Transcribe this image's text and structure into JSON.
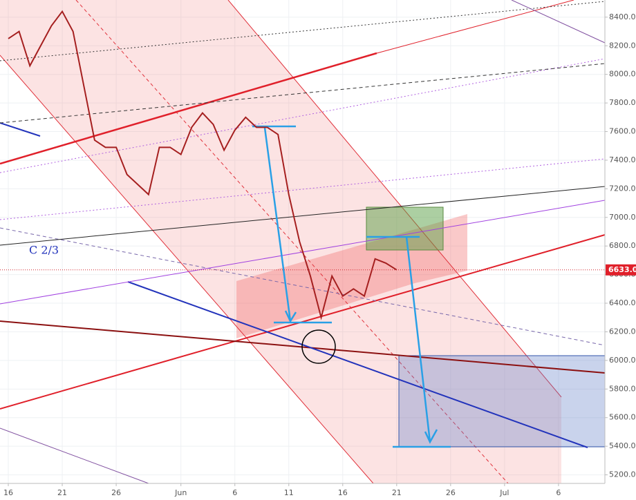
{
  "chart_data": {
    "type": "line",
    "annotation": "C 2/3",
    "last_price": {
      "value": 6633,
      "label": "6633.0"
    },
    "x": [
      0,
      1,
      2,
      3,
      4,
      5,
      6,
      7,
      8,
      9,
      10,
      11,
      12,
      13,
      14,
      15,
      16,
      17,
      18,
      19,
      20,
      21,
      22,
      23,
      24,
      25,
      26,
      27,
      28,
      29,
      30,
      31,
      32,
      33,
      34,
      35,
      36
    ],
    "series": [
      {
        "color": "#a51f1f",
        "values": [
          8250,
          8300,
          8060,
          8200,
          8340,
          8440,
          8300,
          7920,
          7540,
          7490,
          7490,
          7300,
          7230,
          7160,
          7490,
          7490,
          7440,
          7630,
          7730,
          7650,
          7470,
          7610,
          7700,
          7630,
          7630,
          7580,
          7160,
          6830,
          6590,
          6300,
          6590,
          6450,
          6500,
          6450,
          6710,
          6680,
          6633
        ]
      }
    ],
    "xlim": [
      -0.77,
      55.3
    ],
    "ylim": [
      5140,
      8520
    ],
    "xticks": [
      {
        "value": 0,
        "label": "16"
      },
      {
        "value": 5,
        "label": "21"
      },
      {
        "value": 10,
        "label": "26"
      },
      {
        "value": 16,
        "label": "Jun"
      },
      {
        "value": 21,
        "label": "6"
      },
      {
        "value": 26,
        "label": "11"
      },
      {
        "value": 31,
        "label": "16"
      },
      {
        "value": 36,
        "label": "21"
      },
      {
        "value": 41,
        "label": "26"
      },
      {
        "value": 46,
        "label": "Jul"
      },
      {
        "value": 51,
        "label": "6"
      }
    ],
    "yticks": [
      {
        "value": 5200,
        "label": "5200.0"
      },
      {
        "value": 5400,
        "label": "5400.0"
      },
      {
        "value": 5600,
        "label": "5600.0"
      },
      {
        "value": 5800,
        "label": "5800.0"
      },
      {
        "value": 6000,
        "label": "6000.0"
      },
      {
        "value": 6200,
        "label": "6200.0"
      },
      {
        "value": 6400,
        "label": "6400.0"
      },
      {
        "value": 6600,
        "label": "6600.0"
      },
      {
        "value": 6800,
        "label": "6800.0"
      },
      {
        "value": 7000,
        "label": "7000.0"
      },
      {
        "value": 7200,
        "label": "7200.0"
      },
      {
        "value": 7400,
        "label": "7400.0"
      },
      {
        "value": 7600,
        "label": "7600.0"
      },
      {
        "value": 7800,
        "label": "7800.0"
      },
      {
        "value": 8000,
        "label": "8000.0"
      },
      {
        "value": 8200,
        "label": "8200.0"
      },
      {
        "value": 8400,
        "label": "8400.0"
      }
    ],
    "grid": true
  }
}
